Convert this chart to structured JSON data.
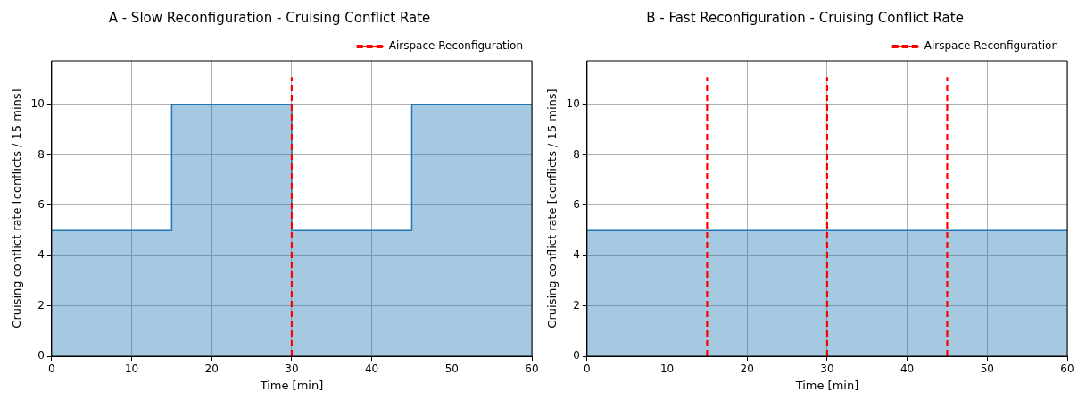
{
  "chart_data": [
    {
      "type": "area",
      "title": "A - Slow Reconfiguration - Cruising Conflict Rate",
      "xlabel": "Time [min]",
      "ylabel": "Cruising conflict rate [conflicts / 15 mins]",
      "x": [
        0,
        15,
        15,
        30,
        30,
        45,
        45,
        60
      ],
      "values": [
        5,
        5,
        10,
        10,
        5,
        5,
        10,
        10
      ],
      "color": "#1f77b4",
      "xlim": [
        0,
        60
      ],
      "xticks": [
        0,
        10,
        20,
        30,
        40,
        50,
        60
      ],
      "ylim": [
        0,
        11.75
      ],
      "yticks": [
        0,
        2,
        4,
        6,
        8,
        10
      ],
      "grid": true,
      "legend": "top right",
      "ref_lines": [
        {
          "axis": "x",
          "value": 30,
          "label": "Airspace Reconfiguration",
          "color": "#ff0000",
          "line_style": "dashed"
        }
      ]
    },
    {
      "type": "area",
      "title": "B - Fast Reconfiguration - Cruising Conflict Rate",
      "xlabel": "Time [min]",
      "ylabel": "Cruising conflict rate [conflicts / 15 mins]",
      "x": [
        0,
        60
      ],
      "values": [
        5,
        5
      ],
      "color": "#1f77b4",
      "xlim": [
        0,
        60
      ],
      "xticks": [
        0,
        10,
        20,
        30,
        40,
        50,
        60
      ],
      "ylim": [
        0,
        11.75
      ],
      "yticks": [
        0,
        2,
        4,
        6,
        8,
        10
      ],
      "grid": true,
      "legend": "top right",
      "ref_lines": [
        {
          "axis": "x",
          "value": 15,
          "label": "Airspace Reconfiguration",
          "color": "#ff0000",
          "line_style": "dashed"
        },
        {
          "axis": "x",
          "value": 30,
          "color": "#ff0000",
          "line_style": "dashed"
        },
        {
          "axis": "x",
          "value": 45,
          "color": "#ff0000",
          "line_style": "dashed"
        }
      ]
    }
  ]
}
